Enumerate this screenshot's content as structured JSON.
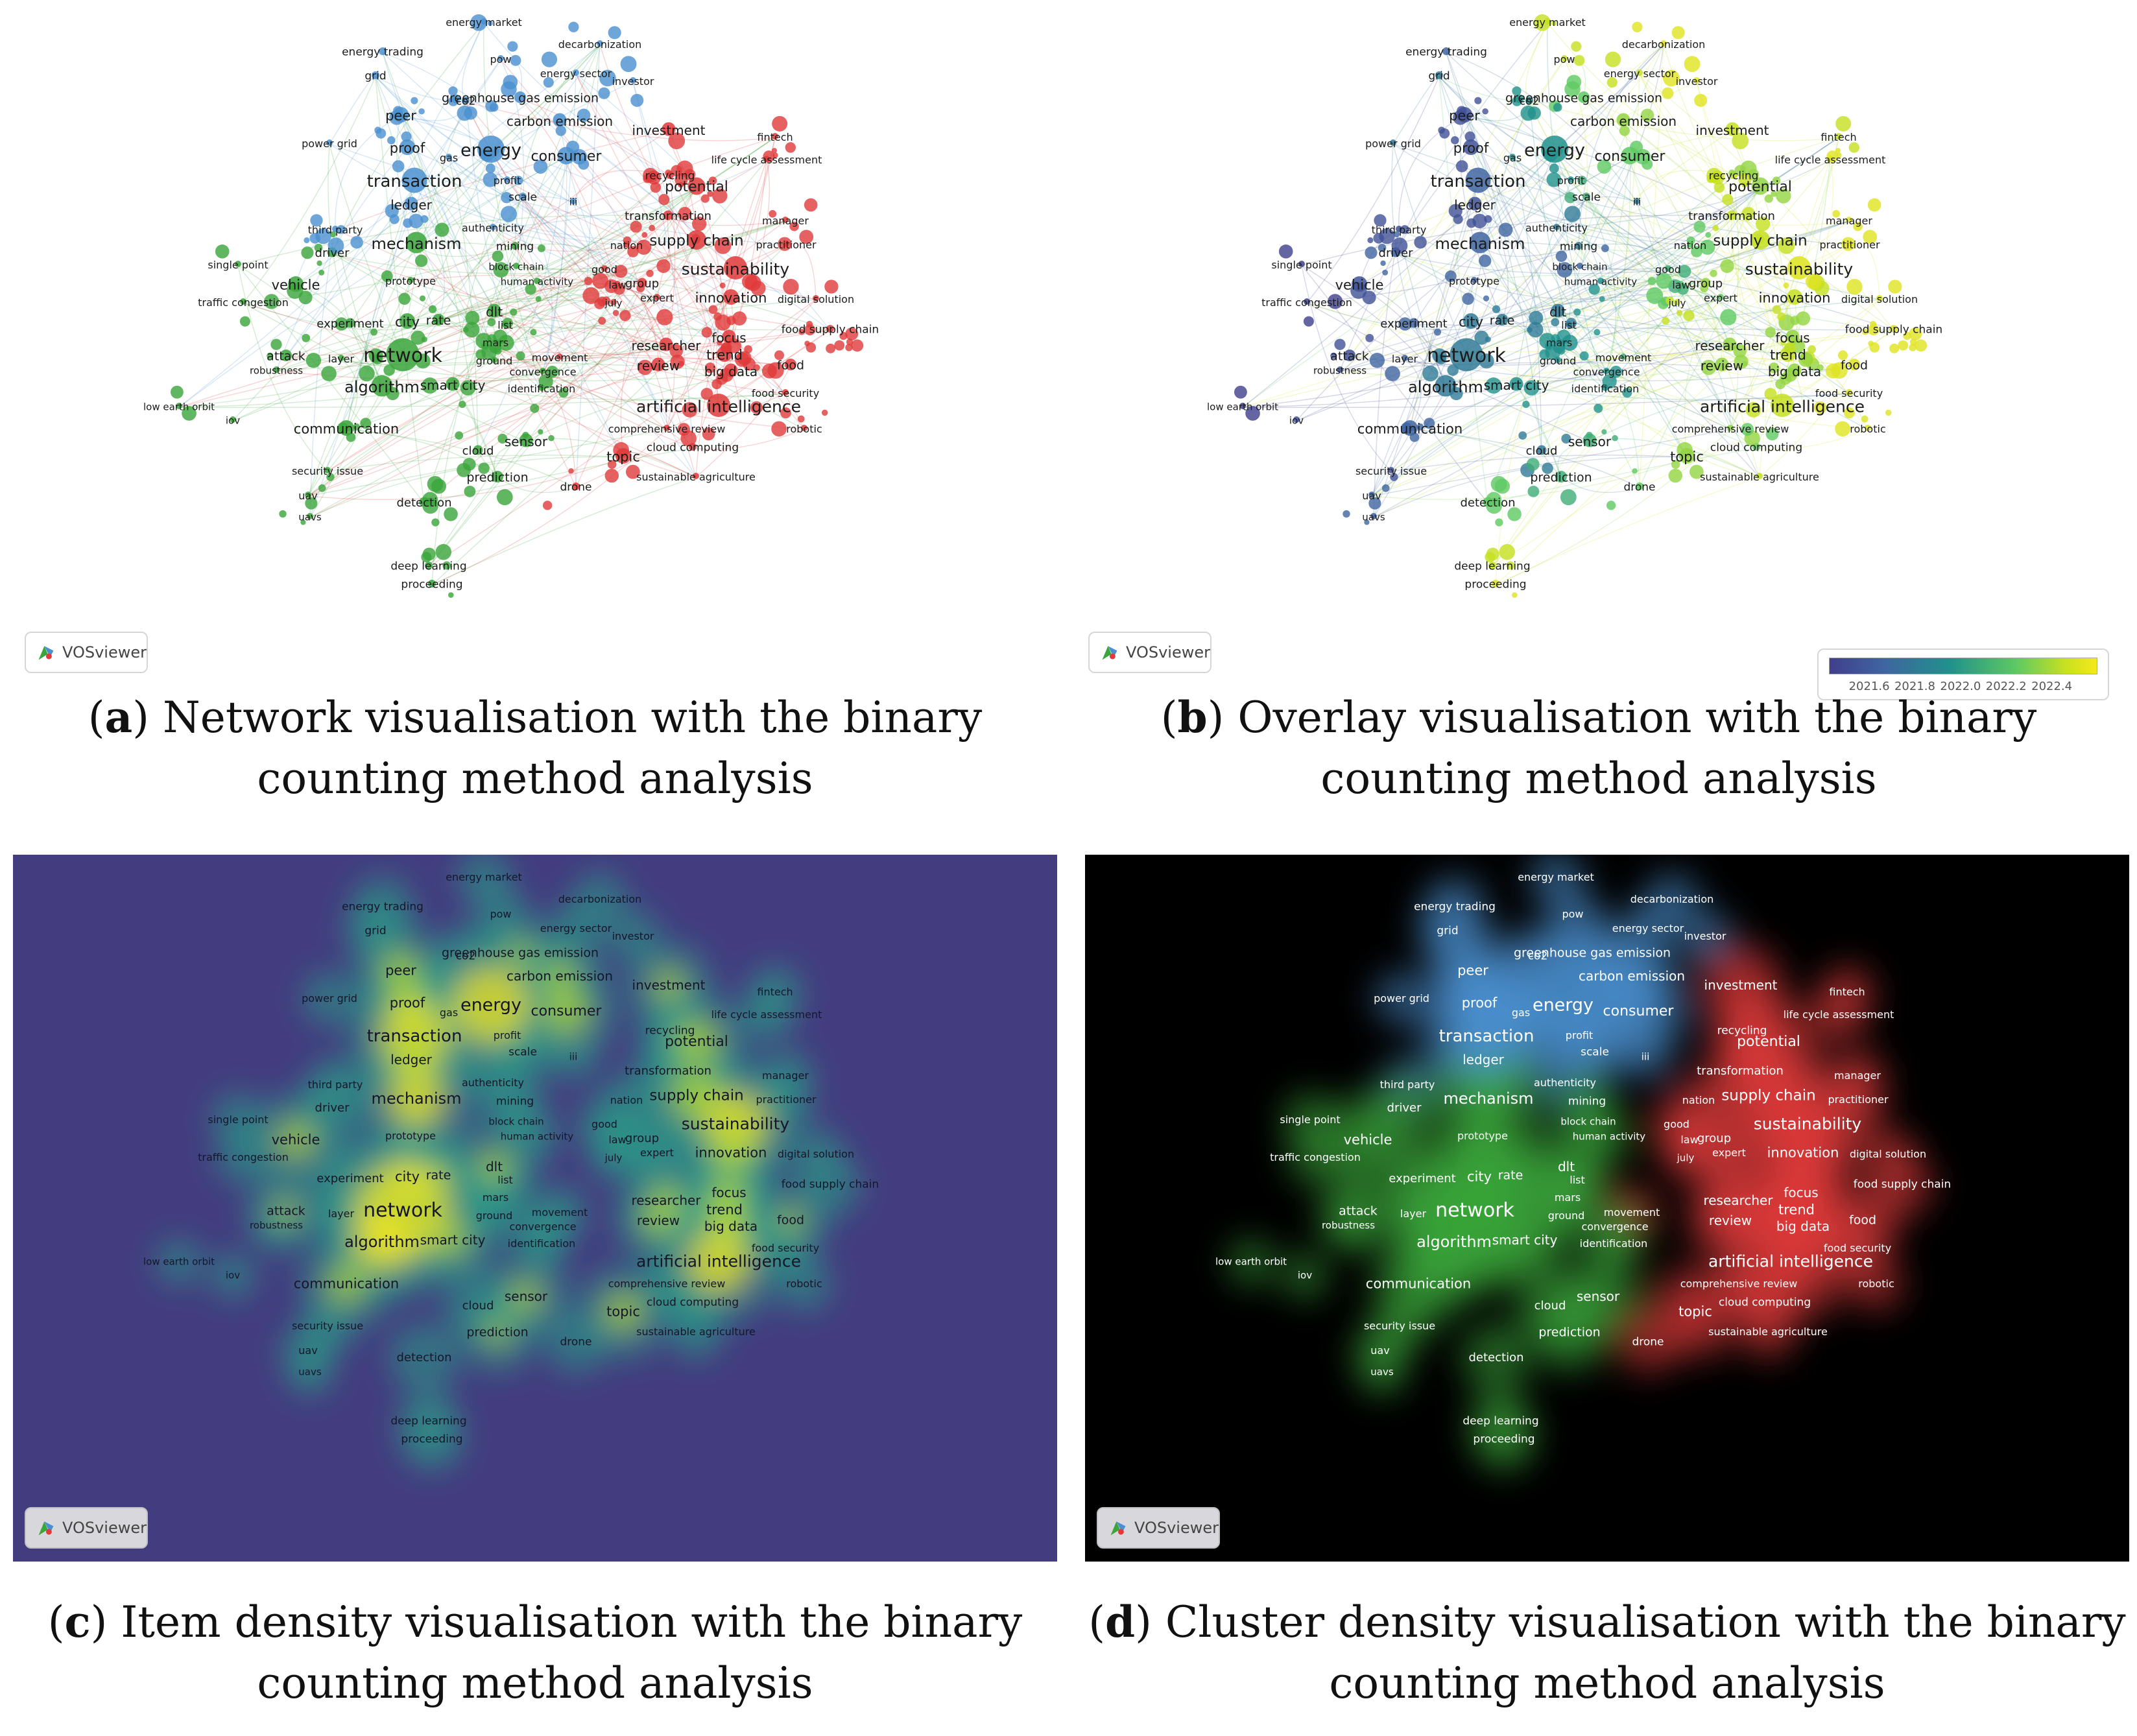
{
  "colors": {
    "cluster_blue": "#4a90d0",
    "cluster_red": "#e03a3a",
    "cluster_green": "#3aa53a",
    "density_background": "#433d7f",
    "cluster_density_background": "#000000",
    "viridis": [
      "#403f8c",
      "#3f64a0",
      "#21918c",
      "#5ec962",
      "#c6e020",
      "#f5e81c"
    ]
  },
  "brand": "VOSviewer",
  "overlay_scale": {
    "ticks": [
      "2021.6",
      "2021.8",
      "2022.0",
      "2022.2",
      "2022.4"
    ]
  },
  "keywords": [
    {
      "text": "energy market",
      "c": "b",
      "s": 16,
      "y": 2022.3
    },
    {
      "text": "decarbonization",
      "c": "b",
      "s": 16,
      "y": 2022.4
    },
    {
      "text": "energy trading",
      "c": "b",
      "s": 17,
      "y": 2021.7
    },
    {
      "text": "pow",
      "c": "b",
      "s": 16,
      "y": 2022.3
    },
    {
      "text": "energy sector",
      "c": "b",
      "s": 16,
      "y": 2022.3
    },
    {
      "text": "investor",
      "c": "b",
      "s": 16,
      "y": 2022.4
    },
    {
      "text": "grid",
      "c": "b",
      "s": 17,
      "y": 2021.8
    },
    {
      "text": "greenhouse gas emission",
      "c": "b",
      "s": 19,
      "y": 2022.1
    },
    {
      "text": "peer",
      "c": "b",
      "s": 21,
      "y": 2021.6
    },
    {
      "text": "co2",
      "c": "b",
      "s": 17,
      "y": 2021.9
    },
    {
      "text": "carbon emission",
      "c": "b",
      "s": 20,
      "y": 2022.2
    },
    {
      "text": "investment",
      "c": "r",
      "s": 20,
      "y": 2022.3
    },
    {
      "text": "fintech",
      "c": "r",
      "s": 16,
      "y": 2022.3
    },
    {
      "text": "power grid",
      "c": "b",
      "s": 16,
      "y": 2021.8
    },
    {
      "text": "proof",
      "c": "b",
      "s": 21,
      "y": 2021.6
    },
    {
      "text": "gas",
      "c": "b",
      "s": 16,
      "y": 2021.9
    },
    {
      "text": "energy",
      "c": "b",
      "s": 27,
      "y": 2021.9
    },
    {
      "text": "consumer",
      "c": "b",
      "s": 22,
      "y": 2022.1
    },
    {
      "text": "recycling",
      "c": "r",
      "s": 17,
      "y": 2022.3
    },
    {
      "text": "life cycle assessment",
      "c": "r",
      "s": 16,
      "y": 2022.4
    },
    {
      "text": "profit",
      "c": "b",
      "s": 16,
      "y": 2021.9
    },
    {
      "text": "transaction",
      "c": "b",
      "s": 26,
      "y": 2021.7
    },
    {
      "text": "scale",
      "c": "b",
      "s": 17,
      "y": 2022.0
    },
    {
      "text": "iii",
      "c": "b",
      "s": 15,
      "y": 2021.8
    },
    {
      "text": "potential",
      "c": "r",
      "s": 22,
      "y": 2022.2
    },
    {
      "text": "ledger",
      "c": "b",
      "s": 20,
      "y": 2021.6
    },
    {
      "text": "third party",
      "c": "b",
      "s": 16,
      "y": 2021.6
    },
    {
      "text": "authenticity",
      "c": "b",
      "s": 16,
      "y": 2021.8
    },
    {
      "text": "transformation",
      "c": "r",
      "s": 18,
      "y": 2022.3
    },
    {
      "text": "manager",
      "c": "r",
      "s": 16,
      "y": 2022.4
    },
    {
      "text": "driver",
      "c": "g",
      "s": 18,
      "y": 2021.7
    },
    {
      "text": "mechanism",
      "c": "g",
      "s": 24,
      "y": 2021.7
    },
    {
      "text": "mining",
      "c": "g",
      "s": 17,
      "y": 2021.8
    },
    {
      "text": "nation",
      "c": "r",
      "s": 16,
      "y": 2022.1
    },
    {
      "text": "supply chain",
      "c": "r",
      "s": 23,
      "y": 2022.3
    },
    {
      "text": "practitioner",
      "c": "r",
      "s": 16,
      "y": 2022.4
    },
    {
      "text": "single point",
      "c": "g",
      "s": 16,
      "y": 2021.5
    },
    {
      "text": "block chain",
      "c": "g",
      "s": 15,
      "y": 2021.7
    },
    {
      "text": "good",
      "c": "r",
      "s": 16,
      "y": 2022.0
    },
    {
      "text": "law",
      "c": "r",
      "s": 16,
      "y": 2022.1
    },
    {
      "text": "group",
      "c": "r",
      "s": 18,
      "y": 2022.2
    },
    {
      "text": "sustainability",
      "c": "r",
      "s": 25,
      "y": 2022.4
    },
    {
      "text": "vehicle",
      "c": "g",
      "s": 21,
      "y": 2021.6
    },
    {
      "text": "prototype",
      "c": "g",
      "s": 16,
      "y": 2021.7
    },
    {
      "text": "human activity",
      "c": "g",
      "s": 15,
      "y": 2021.9
    },
    {
      "text": "digital solution",
      "c": "r",
      "s": 16,
      "y": 2022.4
    },
    {
      "text": "traffic congestion",
      "c": "g",
      "s": 16,
      "y": 2021.5
    },
    {
      "text": "expert",
      "c": "r",
      "s": 16,
      "y": 2022.1
    },
    {
      "text": "innovation",
      "c": "r",
      "s": 21,
      "y": 2022.3
    },
    {
      "text": "july",
      "c": "r",
      "s": 15,
      "y": 2022.3
    },
    {
      "text": "dlt",
      "c": "g",
      "s": 20,
      "y": 2021.8
    },
    {
      "text": "experiment",
      "c": "g",
      "s": 18,
      "y": 2021.7
    },
    {
      "text": "city",
      "c": "g",
      "s": 21,
      "y": 2021.8
    },
    {
      "text": "rate",
      "c": "g",
      "s": 19,
      "y": 2021.8
    },
    {
      "text": "list",
      "c": "g",
      "s": 16,
      "y": 2021.9
    },
    {
      "text": "focus",
      "c": "r",
      "s": 20,
      "y": 2022.2
    },
    {
      "text": "food supply chain",
      "c": "r",
      "s": 17,
      "y": 2022.4
    },
    {
      "text": "mars",
      "c": "g",
      "s": 16,
      "y": 2021.9
    },
    {
      "text": "researcher",
      "c": "r",
      "s": 20,
      "y": 2022.2
    },
    {
      "text": "trend",
      "c": "r",
      "s": 21,
      "y": 2022.3
    },
    {
      "text": "attack",
      "c": "g",
      "s": 19,
      "y": 2021.6
    },
    {
      "text": "network",
      "c": "g",
      "s": 30,
      "y": 2021.8
    },
    {
      "text": "layer",
      "c": "g",
      "s": 16,
      "y": 2021.7
    },
    {
      "text": "ground",
      "c": "g",
      "s": 16,
      "y": 2021.9
    },
    {
      "text": "movement",
      "c": "r",
      "s": 16,
      "y": 2022.0
    },
    {
      "text": "review",
      "c": "r",
      "s": 20,
      "y": 2022.2
    },
    {
      "text": "food",
      "c": "r",
      "s": 19,
      "y": 2022.4
    },
    {
      "text": "robustness",
      "c": "g",
      "s": 15,
      "y": 2021.6
    },
    {
      "text": "convergence",
      "c": "g",
      "s": 16,
      "y": 2021.9
    },
    {
      "text": "big data",
      "c": "r",
      "s": 20,
      "y": 2022.2
    },
    {
      "text": "algorithm",
      "c": "g",
      "s": 24,
      "y": 2021.8
    },
    {
      "text": "smart city",
      "c": "g",
      "s": 20,
      "y": 2021.9
    },
    {
      "text": "identification",
      "c": "g",
      "s": 16,
      "y": 2021.9
    },
    {
      "text": "food security",
      "c": "r",
      "s": 16,
      "y": 2022.4
    },
    {
      "text": "artificial intelligence",
      "c": "r",
      "s": 25,
      "y": 2022.3
    },
    {
      "text": "low earth orbit",
      "c": "g",
      "s": 15,
      "y": 2021.5
    },
    {
      "text": "iov",
      "c": "g",
      "s": 15,
      "y": 2021.6
    },
    {
      "text": "communication",
      "c": "g",
      "s": 21,
      "y": 2021.7
    },
    {
      "text": "comprehensive review",
      "c": "r",
      "s": 16,
      "y": 2022.2
    },
    {
      "text": "robotic",
      "c": "r",
      "s": 16,
      "y": 2022.4
    },
    {
      "text": "sensor",
      "c": "g",
      "s": 20,
      "y": 2022.0
    },
    {
      "text": "cloud",
      "c": "g",
      "s": 18,
      "y": 2021.8
    },
    {
      "text": "cloud computing",
      "c": "r",
      "s": 17,
      "y": 2022.1
    },
    {
      "text": "topic",
      "c": "r",
      "s": 21,
      "y": 2022.2
    },
    {
      "text": "security issue",
      "c": "g",
      "s": 16,
      "y": 2021.6
    },
    {
      "text": "prediction",
      "c": "g",
      "s": 19,
      "y": 2022.0
    },
    {
      "text": "sustainable agriculture",
      "c": "r",
      "s": 16,
      "y": 2022.3
    },
    {
      "text": "uav",
      "c": "g",
      "s": 16,
      "y": 2021.7
    },
    {
      "text": "drone",
      "c": "r",
      "s": 17,
      "y": 2022.1
    },
    {
      "text": "detection",
      "c": "g",
      "s": 18,
      "y": 2022.1
    },
    {
      "text": "uavs",
      "c": "g",
      "s": 15,
      "y": 2021.7
    },
    {
      "text": "deep learning",
      "c": "g",
      "s": 17,
      "y": 2022.3
    },
    {
      "text": "proceeding",
      "c": "g",
      "s": 17,
      "y": 2022.4
    }
  ],
  "captions": {
    "a": {
      "letter": "a",
      "line1": ") Network visualisation with the binary",
      "line2": "counting method analysis"
    },
    "b": {
      "letter": "b",
      "line1": ") Overlay visualisation with the binary",
      "line2": "counting method analysis"
    },
    "c": {
      "letter": "c",
      "line1": ") Item density visualisation with the binary",
      "line2": "counting method analysis"
    },
    "d": {
      "letter": "d",
      "line1": ") Cluster density visualisation with the binary",
      "line2": "counting method analysis"
    }
  }
}
